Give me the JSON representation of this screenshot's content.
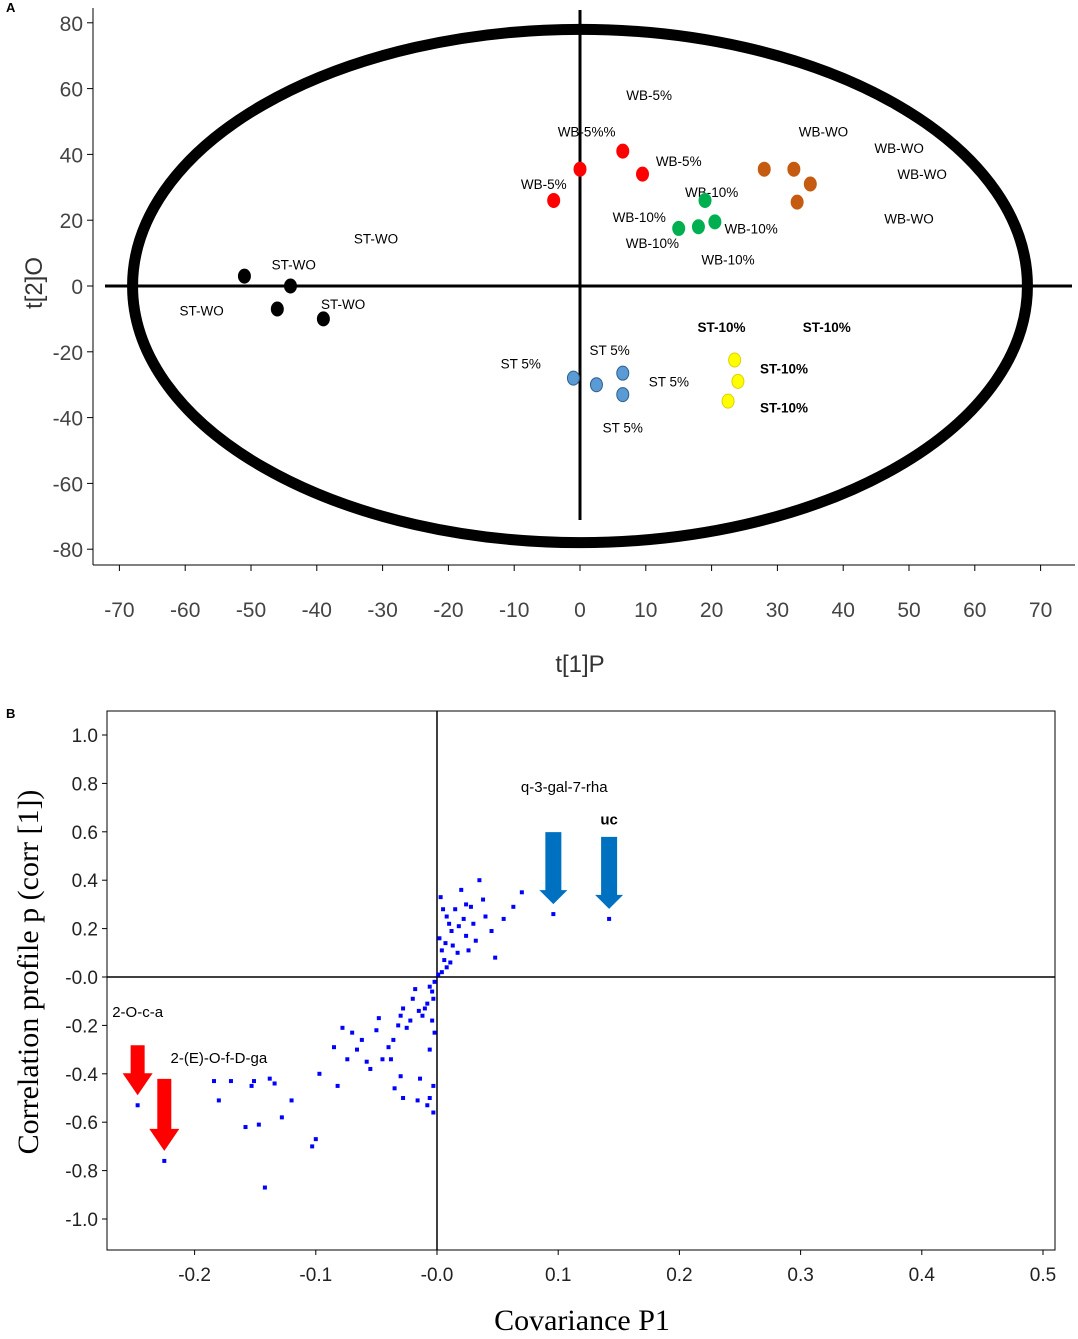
{
  "panels": [
    {
      "panel_label": "A",
      "chart_data": {
        "type": "scatter",
        "title": "",
        "xlabel": "t[1]P",
        "ylabel": "t[2]O",
        "xlim": [
          -72,
          72
        ],
        "ylim": [
          -82,
          84
        ],
        "xticks": [
          -70,
          -60,
          -50,
          -40,
          -30,
          -20,
          -10,
          0,
          10,
          20,
          30,
          40,
          50,
          60,
          70
        ],
        "yticks": [
          80,
          60,
          40,
          20,
          0,
          -20,
          -40,
          -60,
          -80
        ],
        "ellipse": {
          "rx": 68,
          "ry": 78,
          "cx": 0,
          "cy": 0
        },
        "series": [
          {
            "name": "ST-WO",
            "color": "#000000",
            "points": [
              [
                -51,
                3
              ],
              [
                -44,
                0
              ],
              [
                -46,
                -7
              ],
              [
                -39,
                -10
              ]
            ]
          },
          {
            "name": "WB-5%",
            "color": "#ff0000",
            "points": [
              [
                -4,
                26
              ],
              [
                0,
                35.5
              ],
              [
                6.5,
                41
              ],
              [
                9.5,
                34
              ]
            ]
          },
          {
            "name": "WB-WO",
            "color": "#c55a11",
            "points": [
              [
                28,
                35.5
              ],
              [
                32.5,
                35.5
              ],
              [
                35,
                31
              ],
              [
                33,
                25.5
              ]
            ]
          },
          {
            "name": "WB-10%",
            "color": "#00b050",
            "points": [
              [
                19,
                26
              ],
              [
                15,
                17.5
              ],
              [
                18,
                18
              ],
              [
                20.5,
                19.5
              ]
            ]
          },
          {
            "name": "ST 5%",
            "color": "#5b9bd5",
            "points": [
              [
                -1,
                -28
              ],
              [
                2.5,
                -30
              ],
              [
                6.5,
                -26.5
              ],
              [
                6.5,
                -33
              ]
            ]
          },
          {
            "name": "ST-10%",
            "color": "#ffff00",
            "points": [
              [
                23.5,
                -22.5
              ],
              [
                24,
                -29
              ],
              [
                22.5,
                -35
              ]
            ]
          }
        ],
        "annotations": [
          {
            "text": "WB-5%",
            "x": 10.5,
            "y": 58
          },
          {
            "text": "WB-5%%",
            "x": 1,
            "y": 47
          },
          {
            "text": "WB-5%",
            "x": 15,
            "y": 38
          },
          {
            "text": "WB-5%",
            "x": -5.5,
            "y": 31
          },
          {
            "text": "WB-WO",
            "x": 37,
            "y": 47
          },
          {
            "text": "WB-WO",
            "x": 48.5,
            "y": 42
          },
          {
            "text": "WB-WO",
            "x": 52,
            "y": 34
          },
          {
            "text": "WB-WO",
            "x": 50,
            "y": 20.5
          },
          {
            "text": "WB-10%",
            "x": 20,
            "y": 28.5
          },
          {
            "text": "WB-10%",
            "x": 9,
            "y": 21
          },
          {
            "text": "WB-10%",
            "x": 26,
            "y": 17.5
          },
          {
            "text": "WB-10%",
            "x": 11,
            "y": 13
          },
          {
            "text": "WB-10%",
            "x": 22.5,
            "y": 8
          },
          {
            "text": "ST-WO",
            "x": -31,
            "y": 14.5
          },
          {
            "text": "ST-WO",
            "x": -43.5,
            "y": 6.5
          },
          {
            "text": "ST-WO",
            "x": -57.5,
            "y": -7.5
          },
          {
            "text": "ST-WO",
            "x": -36,
            "y": -5.5
          },
          {
            "text": "ST-10%",
            "x": 21.5,
            "y": -12.5,
            "bold": true
          },
          {
            "text": "ST-10%",
            "x": 37.5,
            "y": -12.5,
            "bold": true
          },
          {
            "text": "ST-10%",
            "x": 31,
            "y": -25,
            "bold": true
          },
          {
            "text": "ST-10%",
            "x": 31,
            "y": -37,
            "bold": true
          },
          {
            "text": "ST 5%",
            "x": 4.5,
            "y": -19.5
          },
          {
            "text": "ST 5%",
            "x": -9,
            "y": -23.5
          },
          {
            "text": "ST 5%",
            "x": 13.5,
            "y": -29
          },
          {
            "text": "ST 5%",
            "x": 6.5,
            "y": -43
          }
        ]
      }
    },
    {
      "panel_label": "B",
      "chart_data": {
        "type": "scatter",
        "title": "",
        "xlabel": "Covariance P1",
        "ylabel": "Correlation profile p (corr [1])",
        "xlim": [
          -0.275,
          0.52
        ],
        "ylim": [
          -1.05,
          1.05
        ],
        "xticks": [
          "-0.2",
          "-0.1",
          "-0.0",
          "0.1",
          "0.2",
          "0.3",
          "0.4",
          "0.5"
        ],
        "yticks": [
          "1.0",
          "0.8",
          "0.6",
          "0.4",
          "0.2",
          "-0.0",
          "-0.2",
          "-0.4",
          "-0.6",
          "-0.8",
          "-1.0"
        ],
        "point_color": "#0000ff",
        "points": [
          [
            0.003,
            0.33
          ],
          [
            0.005,
            0.28
          ],
          [
            0.008,
            0.25
          ],
          [
            0.01,
            0.22
          ],
          [
            0.012,
            0.19
          ],
          [
            0.013,
            0.13
          ],
          [
            0.015,
            0.28
          ],
          [
            0.018,
            0.21
          ],
          [
            0.02,
            0.36
          ],
          [
            0.022,
            0.24
          ],
          [
            0.024,
            0.17
          ],
          [
            0.026,
            0.11
          ],
          [
            0.028,
            0.29
          ],
          [
            0.03,
            0.22
          ],
          [
            0.032,
            0.15
          ],
          [
            0.035,
            0.4
          ],
          [
            0.038,
            0.32
          ],
          [
            0.04,
            0.25
          ],
          [
            0.045,
            0.19
          ],
          [
            0.048,
            0.08
          ],
          [
            0.055,
            0.24
          ],
          [
            0.063,
            0.29
          ],
          [
            0.07,
            0.35
          ],
          [
            0.002,
            0.16
          ],
          [
            0.004,
            0.11
          ],
          [
            0.006,
            0.07
          ],
          [
            0.008,
            0.04
          ],
          [
            0.004,
            0.02
          ],
          [
            0.001,
            0.01
          ],
          [
            0.007,
            0.14
          ],
          [
            0.011,
            0.06
          ],
          [
            0.017,
            0.1
          ],
          [
            0.024,
            0.3
          ],
          [
            0.096,
            0.26
          ],
          [
            0.142,
            0.24
          ],
          [
            -0.002,
            -0.02
          ],
          [
            -0.004,
            -0.06
          ],
          [
            -0.006,
            -0.04
          ],
          [
            -0.003,
            -0.09
          ],
          [
            -0.008,
            -0.11
          ],
          [
            -0.01,
            -0.13
          ],
          [
            -0.012,
            -0.16
          ],
          [
            -0.015,
            -0.14
          ],
          [
            -0.018,
            -0.05
          ],
          [
            -0.02,
            -0.09
          ],
          [
            -0.022,
            -0.18
          ],
          [
            -0.025,
            -0.21
          ],
          [
            -0.028,
            -0.13
          ],
          [
            -0.03,
            -0.16
          ],
          [
            -0.032,
            -0.2
          ],
          [
            -0.036,
            -0.26
          ],
          [
            -0.04,
            -0.29
          ],
          [
            -0.045,
            -0.34
          ],
          [
            -0.048,
            -0.17
          ],
          [
            -0.05,
            -0.22
          ],
          [
            -0.004,
            -0.18
          ],
          [
            -0.002,
            -0.23
          ],
          [
            -0.006,
            -0.3
          ],
          [
            -0.003,
            -0.45
          ],
          [
            -0.006,
            -0.5
          ],
          [
            -0.003,
            -0.56
          ],
          [
            -0.008,
            -0.53
          ],
          [
            -0.014,
            -0.42
          ],
          [
            -0.016,
            -0.51
          ],
          [
            -0.028,
            -0.5
          ],
          [
            -0.035,
            -0.46
          ],
          [
            -0.038,
            -0.34
          ],
          [
            -0.03,
            -0.41
          ],
          [
            -0.055,
            -0.38
          ],
          [
            -0.058,
            -0.35
          ],
          [
            -0.062,
            -0.26
          ],
          [
            -0.066,
            -0.3
          ],
          [
            -0.07,
            -0.23
          ],
          [
            -0.074,
            -0.34
          ],
          [
            -0.078,
            -0.21
          ],
          [
            -0.082,
            -0.45
          ],
          [
            -0.085,
            -0.29
          ],
          [
            -0.097,
            -0.4
          ],
          [
            -0.1,
            -0.67
          ],
          [
            -0.103,
            -0.7
          ],
          [
            -0.12,
            -0.51
          ],
          [
            -0.128,
            -0.58
          ],
          [
            -0.134,
            -0.44
          ],
          [
            -0.138,
            -0.42
          ],
          [
            -0.142,
            -0.87
          ],
          [
            -0.147,
            -0.61
          ],
          [
            -0.151,
            -0.43
          ],
          [
            -0.153,
            -0.45
          ],
          [
            -0.158,
            -0.62
          ],
          [
            -0.17,
            -0.43
          ],
          [
            -0.18,
            -0.51
          ],
          [
            -0.184,
            -0.43
          ],
          [
            -0.247,
            -0.53
          ],
          [
            -0.225,
            -0.76
          ]
        ],
        "highlighted_points": [
          {
            "label": "q-3-gal-7-rha",
            "x": 0.096,
            "y": 0.26,
            "arrow_color": "#0070c0"
          },
          {
            "label": "uc",
            "x": 0.142,
            "y": 0.24,
            "arrow_color": "#0070c0"
          },
          {
            "label": "2-O-c-a",
            "x": -0.247,
            "y": -0.53,
            "arrow_color": "#ff0000"
          },
          {
            "label": "2-(E)-O-f-D-ga",
            "x": -0.225,
            "y": -0.76,
            "arrow_color": "#ff0000"
          }
        ],
        "annotations": [
          {
            "text": "q-3-gal-7-rha",
            "x": 0.105,
            "y": 0.785
          },
          {
            "text": "uc",
            "x": 0.142,
            "y": 0.65,
            "bold": true
          },
          {
            "text": "2-O-c-a",
            "x": -0.247,
            "y": -0.145
          },
          {
            "text": "2-(E)-O-f-D-ga",
            "x": -0.18,
            "y": -0.335
          }
        ]
      }
    }
  ]
}
